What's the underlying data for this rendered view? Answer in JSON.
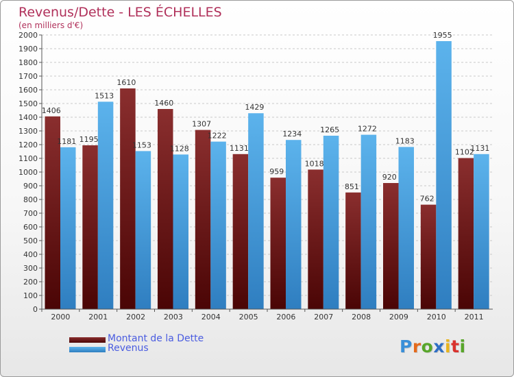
{
  "title": "Revenus/Dette - LES ÉCHELLES",
  "subtitle": "(en milliers d'€)",
  "colors": {
    "title": "#b0305a",
    "dette": "#7a1a1a",
    "revenus": "#4ba3e0",
    "legend_text": "#4a5ce0"
  },
  "chart_data": {
    "type": "bar",
    "categories": [
      "2000",
      "2001",
      "2002",
      "2003",
      "2004",
      "2005",
      "2006",
      "2007",
      "2008",
      "2009",
      "2010",
      "2011"
    ],
    "series": [
      {
        "name": "Montant de la Dette",
        "values": [
          1406,
          1195,
          1610,
          1460,
          1307,
          1131,
          959,
          1018,
          851,
          920,
          762,
          1102
        ],
        "labels": [
          "1406",
          "1195",
          "1610",
          "1460",
          "1307",
          "1131",
          "959",
          "1018",
          "851",
          "920",
          "762",
          "1102"
        ]
      },
      {
        "name": "Revenus",
        "values": [
          1181,
          1513,
          1153,
          1128,
          1222,
          1429,
          1234,
          1265,
          1272,
          1183,
          1955,
          1131
        ],
        "labels": [
          "1181",
          "1513",
          "1153",
          "1128",
          "1222",
          "1429",
          "1234",
          "1265",
          "1272",
          "1183",
          "1955",
          "1131"
        ]
      }
    ],
    "ylim": [
      0,
      2000
    ],
    "yticks": [
      "0",
      "100",
      "200",
      "300",
      "400",
      "500",
      "600",
      "700",
      "800",
      "900",
      "1000",
      "1100",
      "1200",
      "1300",
      "1400",
      "1500",
      "1600",
      "1700",
      "1800",
      "1900",
      "2000"
    ],
    "grid": true,
    "legend_position": "bottom-left"
  },
  "legend": {
    "items": [
      {
        "label": "Montant de la Dette"
      },
      {
        "label": "Revenus"
      }
    ]
  },
  "logo": {
    "letters": [
      "P",
      "r",
      "o",
      "x",
      "i",
      "t",
      "i"
    ],
    "colors": [
      "#3a8fd8",
      "#e46a1c",
      "#58a62a",
      "#2f6fc4",
      "#e8b41e",
      "#d9322e",
      "#58a62a"
    ]
  }
}
